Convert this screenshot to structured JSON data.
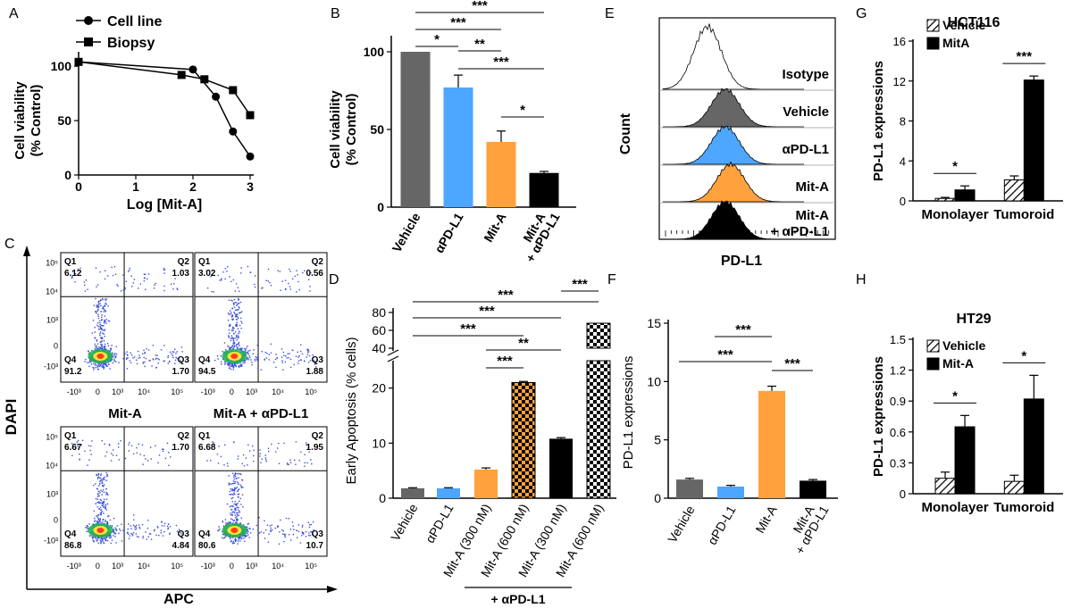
{
  "colors": {
    "vehicle": "#666666",
    "apd": "#4da6ff",
    "mita": "#ffa23d",
    "combo": "#000000",
    "dots": "#3b4fd8"
  },
  "panel_letters": [
    "A",
    "B",
    "C",
    "D",
    "E",
    "F",
    "G",
    "H"
  ],
  "chart_data": [
    {
      "panel": "A",
      "type": "line",
      "xlabel": "Log [Mit-A]",
      "ylabel_lines": [
        "Cell viability",
        "(% Control)"
      ],
      "xlim": [
        0,
        3
      ],
      "ylim": [
        0,
        110
      ],
      "xticks": [
        "0",
        "1",
        "2",
        "3"
      ],
      "yticks": [
        "0",
        "50",
        "100"
      ],
      "series": [
        {
          "name": "Cell line",
          "marker": "circle",
          "x": [
            0,
            2,
            2.4,
            2.7,
            3
          ],
          "y": [
            104,
            97,
            72,
            40,
            17
          ]
        },
        {
          "name": "Biopsy",
          "marker": "square",
          "x": [
            0,
            1.8,
            2.2,
            2.7,
            3
          ],
          "y": [
            104,
            92,
            88,
            78,
            55
          ]
        }
      ]
    },
    {
      "panel": "B",
      "type": "bar",
      "ylabel_lines": [
        "Cell viability",
        "(% Control)"
      ],
      "ylim": [
        0,
        100
      ],
      "yticks": [
        "0",
        "50",
        "100"
      ],
      "categories": [
        "Vehicle",
        "αPD-L1",
        "Mit-A",
        "Mit-A",
        "+ αPD-L1"
      ],
      "bars": [
        {
          "label": "Vehicle",
          "value": 100,
          "err": 0,
          "color": "#666666"
        },
        {
          "label": "αPD-L1",
          "value": 77,
          "err": 8,
          "color": "#4da6ff"
        },
        {
          "label": "Mit-A",
          "value": 42,
          "err": 7,
          "color": "#ffa23d"
        },
        {
          "label": "Mit-A + αPD-L1",
          "value": 22,
          "err": 1,
          "color": "#000000"
        }
      ],
      "significance": [
        {
          "from": 0,
          "to": 3,
          "label": "***"
        },
        {
          "from": 0,
          "to": 2,
          "label": "***"
        },
        {
          "from": 0,
          "to": 1,
          "label": "*"
        },
        {
          "from": 1,
          "to": 2,
          "label": "**"
        },
        {
          "from": 1,
          "to": 3,
          "label": "***"
        },
        {
          "from": 2,
          "to": 3,
          "label": "*"
        }
      ]
    },
    {
      "panel": "D",
      "type": "bar",
      "ylabel": "Early Apoptosis (% cells)",
      "ylim_lower": [
        0,
        24
      ],
      "ylim_upper": [
        40,
        80
      ],
      "yticks_lower": [
        "0",
        "10",
        "20"
      ],
      "yticks_upper": [
        "40",
        "60",
        "80"
      ],
      "categories": [
        "Vehicle",
        "αPD-L1",
        "Mit-A (300 nM)",
        "Mit-A (600 nM)",
        "Mit-A (300 nM)",
        "Mit-A (600 nM)"
      ],
      "group_label": "+ αPD-L1",
      "bars": [
        {
          "label": "Vehicle",
          "value": 1.8,
          "err": 0.1,
          "color": "#666666",
          "pattern": "none"
        },
        {
          "label": "αPD-L1",
          "value": 1.8,
          "err": 0.1,
          "color": "#4da6ff",
          "pattern": "none"
        },
        {
          "label": "Mit-A (300 nM)",
          "value": 5.2,
          "err": 0.3,
          "color": "#ffa23d",
          "pattern": "none"
        },
        {
          "label": "Mit-A (600 nM)",
          "value": 21,
          "err": 0.2,
          "color": "#ffa23d",
          "pattern": "check"
        },
        {
          "label": "Mit-A (300 nM) + αPD-L1",
          "value": 10.8,
          "err": 0.2,
          "color": "#000000",
          "pattern": "none"
        },
        {
          "label": "Mit-A (600 nM) + αPD-L1",
          "value": 68,
          "err": 1,
          "color": "#000000",
          "pattern": "check"
        }
      ],
      "significance": [
        {
          "label": "***"
        },
        {
          "label": "***"
        },
        {
          "label": "***"
        },
        {
          "label": "***"
        },
        {
          "label": "**"
        },
        {
          "label": "***"
        }
      ]
    },
    {
      "panel": "F",
      "type": "bar",
      "ylabel": "PD-L1 expressions",
      "ylim": [
        0,
        15
      ],
      "yticks": [
        "0",
        "5",
        "10",
        "15"
      ],
      "categories": [
        "Vehicle",
        "αPD-L1",
        "Mit-A",
        "Mit-A",
        "+ αPD-L1"
      ],
      "bars": [
        {
          "label": "Vehicle",
          "value": 1.6,
          "err": 0.1,
          "color": "#666666"
        },
        {
          "label": "αPD-L1",
          "value": 1.0,
          "err": 0.1,
          "color": "#4da6ff"
        },
        {
          "label": "Mit-A",
          "value": 9.2,
          "err": 0.4,
          "color": "#ffa23d"
        },
        {
          "label": "Mit-A + αPD-L1",
          "value": 1.5,
          "err": 0.1,
          "color": "#000000"
        }
      ],
      "significance": [
        {
          "label": "***"
        },
        {
          "label": "***"
        },
        {
          "label": "***"
        }
      ]
    },
    {
      "panel": "G",
      "type": "bar",
      "title": "HCT116",
      "ylabel": "PD-L1 expressions",
      "ylim": [
        0,
        16
      ],
      "yticks": [
        "0",
        "4",
        "8",
        "12",
        "16"
      ],
      "categories": [
        "Monolayer",
        "Tumoroid"
      ],
      "series": [
        {
          "name": "Vehicle",
          "pattern": "hatch",
          "values": [
            0.25,
            2.1
          ],
          "err": [
            0.1,
            0.4
          ]
        },
        {
          "name": "MitA",
          "pattern": "solid",
          "values": [
            1.1,
            12.1
          ],
          "err": [
            0.4,
            0.4
          ]
        }
      ],
      "significance": [
        {
          "label": "*"
        },
        {
          "label": "***"
        }
      ]
    },
    {
      "panel": "H",
      "type": "bar",
      "title": "HT29",
      "ylabel": "PD-L1 expressions",
      "ylim": [
        0,
        1.5
      ],
      "yticks": [
        "0",
        "0.3",
        "0.6",
        "0.9",
        "1.2",
        "1.5"
      ],
      "categories": [
        "Monolayer",
        "Tumoroid"
      ],
      "series": [
        {
          "name": "Vehicle",
          "pattern": "hatch",
          "values": [
            0.15,
            0.12
          ],
          "err": [
            0.06,
            0.06
          ]
        },
        {
          "name": "Mit-A",
          "pattern": "solid",
          "values": [
            0.65,
            0.92
          ],
          "err": [
            0.11,
            0.23
          ]
        }
      ],
      "significance": [
        {
          "label": "*"
        },
        {
          "label": "*"
        }
      ]
    }
  ],
  "panel_E": {
    "ylabel": "Count",
    "xlabel": "PD-L1",
    "rows": [
      {
        "label": "Isotype",
        "color": "#ffffff"
      },
      {
        "label": "Vehicle",
        "color": "#666666"
      },
      {
        "label": "αPD-L1",
        "color": "#4da6ff"
      },
      {
        "label": "Mit-A",
        "color": "#ffa23d"
      },
      {
        "label": "Mit-A",
        "label2": "+ αPD-L1",
        "color": "#000000"
      }
    ]
  },
  "panel_C": {
    "ylabel": "DAPI",
    "xlabel": "APC",
    "axis_ticks_x": [
      "-10³",
      "0",
      "10³",
      "10⁴",
      "10⁵"
    ],
    "axis_ticks_y": [
      "10⁵",
      "10⁴",
      "10³",
      "0",
      "-10³"
    ],
    "titles": [
      "Mit-A",
      "Mit-A + αPD-L1"
    ],
    "plots": [
      {
        "q1": "6.12",
        "q2": "1.03",
        "q3": "1.70",
        "q4": "91.2"
      },
      {
        "q1": "3.02",
        "q2": "0.56",
        "q3": "1.88",
        "q4": "94.5"
      },
      {
        "q1": "6.67",
        "q2": "1.70",
        "q3": "4.84",
        "q4": "86.8"
      },
      {
        "q1": "6.68",
        "q2": "1.95",
        "q3": "10.7",
        "q4": "80.6"
      }
    ],
    "quadrant_names": [
      "Q1",
      "Q2",
      "Q3",
      "Q4"
    ]
  }
}
